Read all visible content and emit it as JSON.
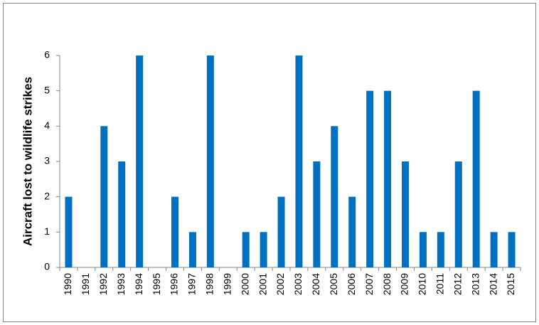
{
  "chart_data": {
    "type": "bar",
    "y_label": "Aircraft lost to wildlife strikes",
    "categories": [
      "1990",
      "1991",
      "1992",
      "1993",
      "1994",
      "1995",
      "1996",
      "1997",
      "1998",
      "1999",
      "2000",
      "2001",
      "2002",
      "2003",
      "2004",
      "2005",
      "2006",
      "2007",
      "2008",
      "2009",
      "2010",
      "2011",
      "2012",
      "2013",
      "2014",
      "2015"
    ],
    "values": [
      2,
      0,
      4,
      3,
      6,
      0,
      2,
      1,
      6,
      0,
      1,
      1,
      2,
      6,
      3,
      4,
      2,
      5,
      5,
      3,
      1,
      1,
      3,
      5,
      1,
      1
    ],
    "color": "#0070c0",
    "ylim": [
      0,
      6
    ],
    "yticks": [
      0,
      1,
      2,
      3,
      4,
      5,
      6
    ],
    "grid": false
  }
}
